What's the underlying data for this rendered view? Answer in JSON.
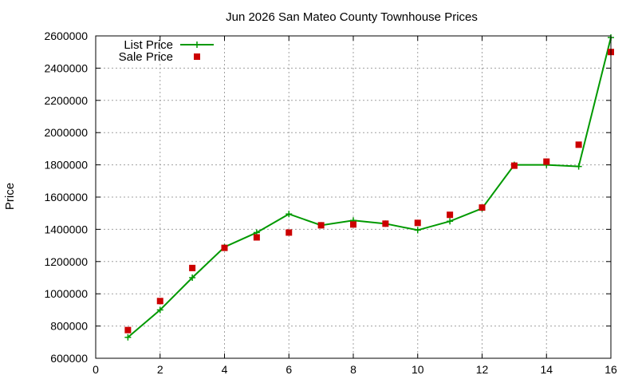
{
  "chart_data": {
    "type": "line",
    "title": "Jun 2026 San Mateo County Townhouse Prices",
    "xlabel": "",
    "ylabel": "Price",
    "xlim": [
      0,
      16
    ],
    "ylim": [
      600000,
      2600000
    ],
    "xticks": [
      0,
      2,
      4,
      6,
      8,
      10,
      12,
      14,
      16
    ],
    "yticks": [
      600000,
      800000,
      1000000,
      1200000,
      1400000,
      1600000,
      1800000,
      2000000,
      2200000,
      2400000,
      2600000
    ],
    "grid": true,
    "legend_position": "top-left",
    "series": [
      {
        "name": "List Price",
        "style": "line+cross",
        "color": "#009900",
        "x": [
          1,
          2,
          3,
          4,
          5,
          6,
          7,
          8,
          9,
          10,
          11,
          12,
          13,
          14,
          15,
          16
        ],
        "y": [
          730000,
          900000,
          1100000,
          1290000,
          1380000,
          1495000,
          1425000,
          1455000,
          1435000,
          1395000,
          1450000,
          1530000,
          1800000,
          1800000,
          1790000,
          2590000
        ]
      },
      {
        "name": "Sale Price",
        "style": "square",
        "color": "#cc0000",
        "x": [
          1,
          2,
          3,
          4,
          5,
          6,
          7,
          8,
          9,
          10,
          11,
          12,
          13,
          14,
          15,
          16
        ],
        "y": [
          775000,
          955000,
          1160000,
          1285000,
          1350000,
          1380000,
          1425000,
          1430000,
          1435000,
          1440000,
          1490000,
          1535000,
          1795000,
          1820000,
          1925000,
          2500000
        ]
      }
    ]
  }
}
